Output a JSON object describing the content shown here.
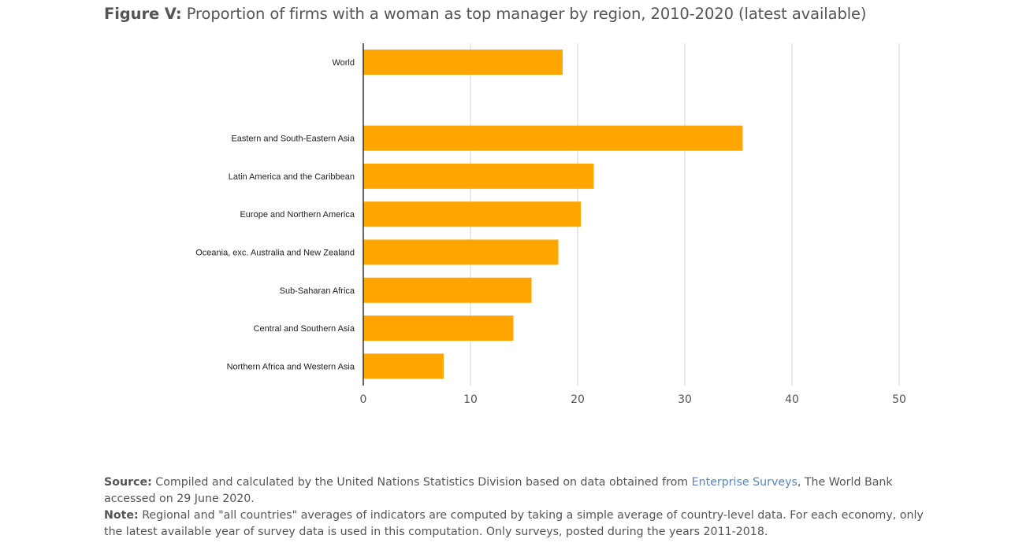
{
  "figure": {
    "label": "Figure V:",
    "title": "Proportion of firms with a woman as top manager by region, 2010-2020 (latest available)"
  },
  "colors": {
    "bar": "#ffa500",
    "grid": "#d9d9d9",
    "axis": "#333333"
  },
  "chart_data": {
    "type": "bar",
    "orientation": "horizontal",
    "categories": [
      "World",
      "",
      "Eastern and South-Eastern Asia",
      "Latin America and the Caribbean",
      "Europe and Northern America",
      "Oceania, exc. Australia and New Zealand",
      "Sub-Saharan Africa",
      "Central and Southern Asia",
      "Northern Africa and Western Asia"
    ],
    "values": [
      18.6,
      null,
      35.4,
      21.5,
      20.3,
      18.2,
      15.7,
      14.0,
      7.5
    ],
    "xlim": [
      0,
      50
    ],
    "xticks": [
      "0",
      "10",
      "20",
      "30",
      "40",
      "50"
    ],
    "xlabel": "",
    "ylabel": "",
    "grid": true
  },
  "notes": {
    "source_label": "Source:",
    "source_text_1": " Compiled and calculated by the United Nations Statistics Division based on data obtained from ",
    "source_link": "Enterprise Surveys",
    "source_text_2": ", The World Bank accessed on 29 June 2020.",
    "note_label": "Note:",
    "note_text": " Regional and \"all countries\" averages of indicators are computed by taking a simple average of country-level data. For each economy, only the latest available year of survey data is used in this computation. Only surveys, posted during the years 2011-2018."
  }
}
